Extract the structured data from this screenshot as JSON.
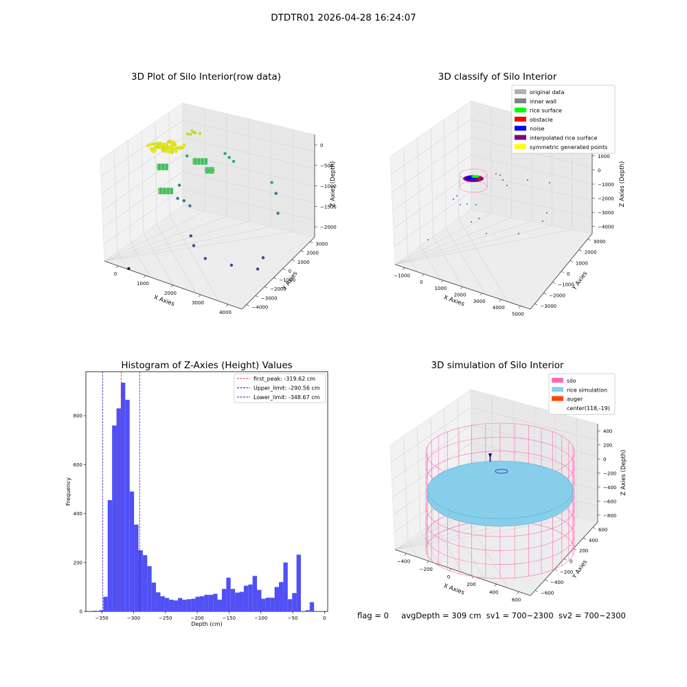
{
  "header": {
    "title": "DTDTR01 2026-04-28 16:24:07"
  },
  "status": {
    "flag": "flag = 0",
    "avg_depth": "avgDepth = 309 cm",
    "sv1": "sv1 = 700~2300",
    "sv2": "sv2 = 700~2300"
  },
  "colors": {
    "histogram_bar": "#5050f5",
    "first_peak": "#d62728",
    "limit_lines": "#1f1fbf",
    "pane": "#f2f2f2",
    "silo": "#ff69b4",
    "rice_simulation": "#87ceeb",
    "auger": "#ff4500"
  },
  "chart_data": [
    {
      "type": "scatter",
      "projection": "3d",
      "title": "3D Plot of Silo Interior(row data)",
      "xlabel": "X Axies",
      "ylabel": "Y Axies",
      "zlabel": "Z Axies (Depth)",
      "x_ticks": [
        "0",
        "1000",
        "2000",
        "3000",
        "4000"
      ],
      "y_ticks": [
        "−4000",
        "−3000",
        "−2000",
        "−1000",
        "0",
        "1000",
        "2000",
        "3000"
      ],
      "z_ticks": [
        "0",
        "−500",
        "−1000",
        "−1500",
        "−2000"
      ],
      "colormap": "viridis",
      "grid": true,
      "points": [
        {
          "x": 300,
          "y": 2500,
          "z": -50
        },
        {
          "x": 400,
          "y": 2400,
          "z": -60
        },
        {
          "x": 500,
          "y": 2300,
          "z": -40
        },
        {
          "x": 350,
          "y": 2200,
          "z": -70
        },
        {
          "x": 600,
          "y": 2500,
          "z": -80
        },
        {
          "x": 200,
          "y": 2300,
          "z": -90
        },
        {
          "x": 1500,
          "y": 2600,
          "z": -450
        },
        {
          "x": 1700,
          "y": 2500,
          "z": -500
        },
        {
          "x": 1900,
          "y": 2400,
          "z": -550
        },
        {
          "x": 300,
          "y": 2000,
          "z": -500
        },
        {
          "x": 200,
          "y": 1500,
          "z": -1050
        },
        {
          "x": 400,
          "y": 800,
          "z": -1200
        },
        {
          "x": 600,
          "y": 900,
          "z": -1250
        },
        {
          "x": 900,
          "y": 700,
          "z": -1300
        },
        {
          "x": 3300,
          "y": 2500,
          "z": -900
        },
        {
          "x": 3500,
          "y": 2400,
          "z": -1100
        },
        {
          "x": 3800,
          "y": 1800,
          "z": -1400
        },
        {
          "x": 1200,
          "y": 0,
          "z": -1800
        },
        {
          "x": 1500,
          "y": -500,
          "z": -1900
        },
        {
          "x": 2200,
          "y": -1200,
          "z": -2000
        },
        {
          "x": 3300,
          "y": -1500,
          "z": -2000
        },
        {
          "x": 4000,
          "y": -200,
          "z": -2000
        },
        {
          "x": 4100,
          "y": -1000,
          "z": -2100
        },
        {
          "x": 0,
          "y": -3000,
          "z": -2100
        }
      ]
    },
    {
      "type": "scatter",
      "projection": "3d",
      "title": "3D classify of Silo Interior",
      "xlabel": "X Axies",
      "ylabel": "Y Axies",
      "zlabel": "Z Axies (Depth)",
      "x_ticks": [
        "−1000",
        "0",
        "1000",
        "2000",
        "3000",
        "4000",
        "5000"
      ],
      "y_ticks": [
        "−3000",
        "−2000",
        "−1000",
        "0",
        "1000",
        "2000",
        "3000"
      ],
      "z_ticks": [
        "2000",
        "1000",
        "0",
        "−1000",
        "−2000",
        "−3000",
        "−4000"
      ],
      "legend_position": "top-right",
      "legend": [
        {
          "label": "original data",
          "color": "#b0b0b0"
        },
        {
          "label": "inner wall",
          "color": "#808080"
        },
        {
          "label": "rice surface",
          "color": "#00ff00"
        },
        {
          "label": "obstacle",
          "color": "#ff0000"
        },
        {
          "label": "noise",
          "color": "#0000ff"
        },
        {
          "label": "interpolated rice surface",
          "color": "#800080"
        },
        {
          "label": "symmetric generated points",
          "color": "#ffff00"
        }
      ],
      "grid": true
    },
    {
      "type": "bar",
      "title": "Histogram of Z-Axies (Height) Values",
      "xlabel": "Depth (cm)",
      "ylabel": "Frequency",
      "xlim": [
        -375,
        5
      ],
      "ylim": [
        0,
        980
      ],
      "x_ticks": [
        -350,
        -300,
        -250,
        -200,
        -150,
        -100,
        -50,
        0
      ],
      "y_ticks": [
        0,
        200,
        400,
        600,
        800
      ],
      "bin_width": 6.9,
      "bin_start": -354.5,
      "values": [
        5,
        60,
        455,
        760,
        830,
        935,
        865,
        490,
        355,
        250,
        230,
        185,
        118,
        78,
        62,
        55,
        48,
        45,
        55,
        48,
        50,
        52,
        60,
        62,
        68,
        68,
        72,
        48,
        92,
        138,
        92,
        77,
        80,
        105,
        110,
        145,
        88,
        52,
        56,
        56,
        100,
        120,
        200,
        50,
        75,
        232,
        0,
        5,
        38
      ],
      "extra_bins": [
        {
          "x": -364,
          "value": 3
        }
      ],
      "lines": [
        {
          "label": "first_peak: -319.62 cm",
          "x": -319.62,
          "color": "#d62728"
        },
        {
          "label": "Upper_limit: -290.56 cm",
          "x": -290.56,
          "color": "#1f1fbf"
        },
        {
          "label": "Lower_limit: -348.67 cm",
          "x": -348.67,
          "color": "#1f1fbf"
        }
      ],
      "legend_position": "top-right"
    },
    {
      "type": "scatter",
      "projection": "3d",
      "title": "3D simulation of Silo Interior",
      "xlabel": "X Axies",
      "ylabel": "Y Axies",
      "zlabel": "Z Axies (Depth)",
      "x_ticks": [
        "−400",
        "−200",
        "0",
        "200",
        "400",
        "600"
      ],
      "y_ticks": [
        "−600",
        "−400",
        "−200",
        "0",
        "200",
        "400",
        "600"
      ],
      "z_ticks": [
        "400",
        "200",
        "0",
        "−200",
        "−400",
        "−600",
        "−800"
      ],
      "legend_position": "top-right",
      "legend": [
        {
          "label": "silo",
          "color": "#ff69b4"
        },
        {
          "label": "rice simulation",
          "color": "#87ceeb"
        },
        {
          "label": "auger",
          "color": "#ff4500"
        },
        {
          "label": "center(118,-19)",
          "color": ""
        }
      ],
      "grid": true
    }
  ]
}
